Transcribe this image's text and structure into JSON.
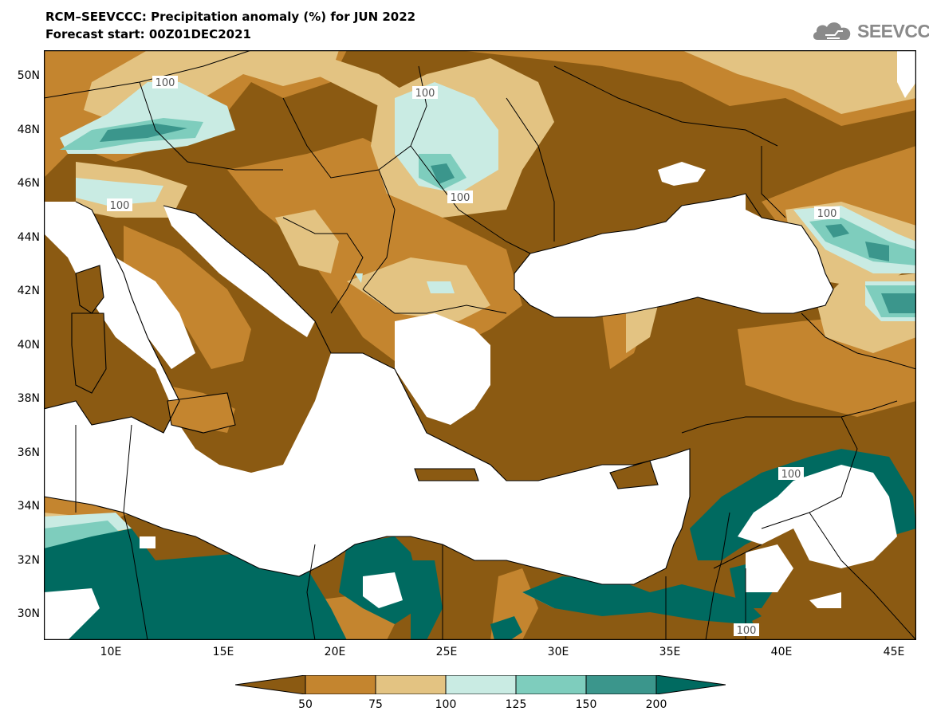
{
  "title": {
    "line1": "RCM–SEEVCCC: Precipitation anomaly (%) for JUN 2022",
    "line2": "Forecast start: 00Z01DEC2021"
  },
  "logo": {
    "text": "SEEVCCC",
    "icon": "cloud-icon"
  },
  "map": {
    "lat_labels": [
      "50N",
      "48N",
      "46N",
      "44N",
      "42N",
      "40N",
      "38N",
      "36N",
      "34N",
      "32N",
      "30N"
    ],
    "lon_labels": [
      "10E",
      "15E",
      "20E",
      "25E",
      "30E",
      "35E",
      "40E",
      "45E"
    ],
    "contour_labels": [
      "100",
      "100",
      "100",
      "100",
      "100",
      "100",
      "100"
    ]
  },
  "colorbar": {
    "labels": [
      "50",
      "75",
      "100",
      "125",
      "150",
      "200"
    ],
    "colors": [
      "#8b5a12",
      "#c4852f",
      "#e3c382",
      "#c9ebe3",
      "#7ecdbd",
      "#3b968c",
      "#006a60"
    ]
  },
  "colors": {
    "lt50": "#8b5a12",
    "c50_75": "#c4852f",
    "c75_100": "#e3c382",
    "c100_125": "#c9ebe3",
    "c125_150": "#7ecdbd",
    "c150_200": "#3b968c",
    "gt200": "#006a60",
    "sea": "#ffffff",
    "border": "#000000"
  }
}
